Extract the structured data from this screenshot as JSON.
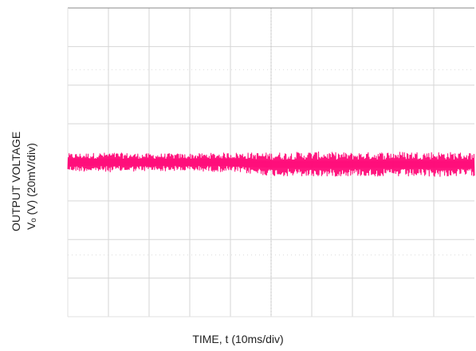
{
  "chart_data": {
    "type": "line",
    "title": "",
    "ylabel_line1": "OUTPUT VOLTAGE",
    "ylabel_line2": "Vₒ (V) (20mV/div)",
    "xlabel": "TIME, t (10ms/div)",
    "grid": true,
    "x_divisions": 10,
    "y_divisions": 8,
    "xlim": [
      0,
      100
    ],
    "x_unit": "ms",
    "y_unit_per_div": "20mV",
    "series": [
      {
        "color": "#ff0a78",
        "x": [
          0,
          10,
          20,
          30,
          40,
          50,
          60,
          70,
          80,
          90,
          100
        ],
        "y_center_div": [
          4.0,
          4.0,
          4.0,
          4.0,
          4.0,
          4.05,
          4.05,
          4.05,
          4.05,
          4.05,
          4.05
        ],
        "ripple_pp_div": [
          0.45,
          0.5,
          0.45,
          0.45,
          0.5,
          0.6,
          0.65,
          0.6,
          0.65,
          0.65,
          0.6
        ]
      }
    ]
  }
}
